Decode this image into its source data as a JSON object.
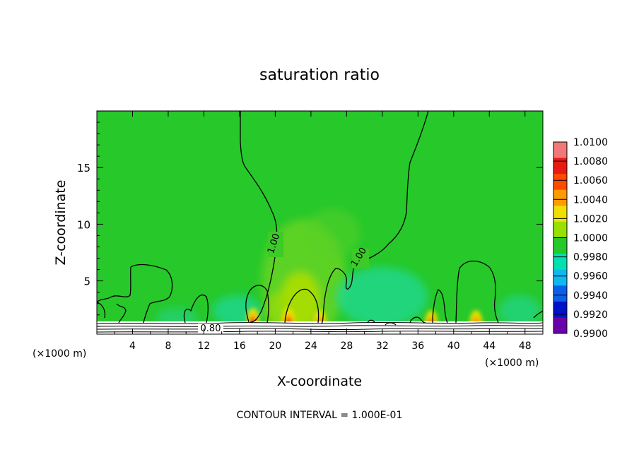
{
  "chart_data": {
    "type": "heatmap",
    "title": "saturation ratio",
    "xlabel": "X-coordinate",
    "ylabel": "Z-coordinate",
    "x_unit_left": "(×1000 m)",
    "x_unit_right": "(×1000 m)",
    "x_ticks": [
      "4",
      "8",
      "12",
      "16",
      "20",
      "24",
      "28",
      "32",
      "36",
      "40",
      "44",
      "48"
    ],
    "x_tick_values": [
      4,
      8,
      12,
      16,
      20,
      24,
      28,
      32,
      36,
      40,
      44,
      48
    ],
    "xlim": [
      0,
      50
    ],
    "y_ticks": [
      "5",
      "10",
      "15"
    ],
    "y_tick_values": [
      5,
      10,
      15
    ],
    "ylim": [
      0.3,
      20
    ],
    "contour_interval": "CONTOUR INTERVAL = 1.000E-01",
    "contour_labels": [
      "1.00",
      "1.00",
      "0.80"
    ],
    "colorbar": {
      "labels": [
        "1.0100",
        "1.0080",
        "1.0060",
        "1.0040",
        "1.0020",
        "1.0000",
        "0.9980",
        "0.9960",
        "0.9940",
        "0.9920",
        "0.9900"
      ],
      "colors": [
        "#f07878",
        "#e81a14",
        "#ff4a00",
        "#ff9a00",
        "#f0e000",
        "#98e000",
        "#26c82a",
        "#00e0b0",
        "#10b8f0",
        "#0a60e8",
        "#0010c8",
        "#6a00a8"
      ]
    },
    "hotspots": [
      {
        "x": 17.5,
        "z": 1.5,
        "value": 1.007
      },
      {
        "x": 21.5,
        "z": 1.5,
        "value": 1.006
      },
      {
        "x": 25.0,
        "z": 1.3,
        "value": 1.004
      },
      {
        "x": 37.5,
        "z": 1.3,
        "value": 1.006
      },
      {
        "x": 42.5,
        "z": 1.3,
        "value": 1.004
      }
    ],
    "grid": false
  }
}
